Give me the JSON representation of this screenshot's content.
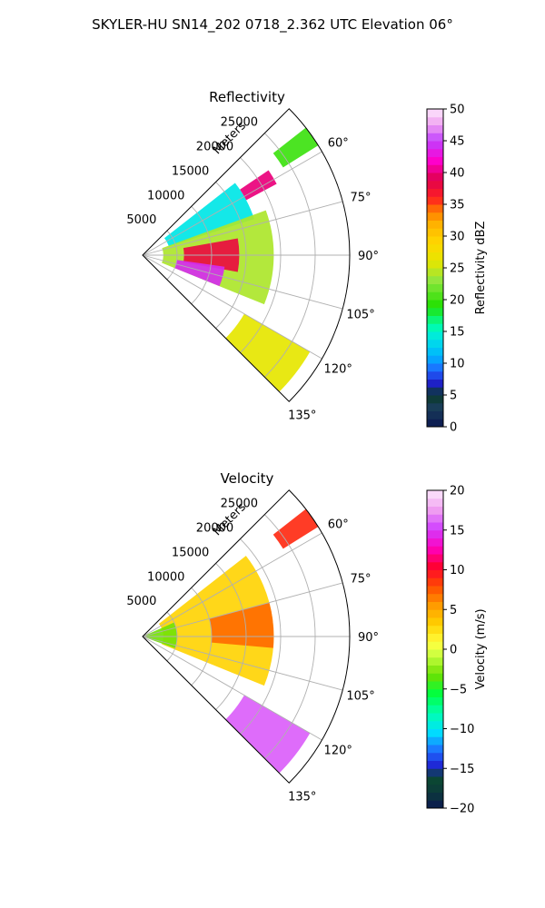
{
  "figure": {
    "title": "SKYLER-HU  SN14_202  0718_2.362 UTC Elevation 06°"
  },
  "chart_data": [
    {
      "type": "heatmap",
      "title": "Reflectivity",
      "projection": "polar sector",
      "radial_label": "Meters",
      "radial_ticks": [
        "5000",
        "10000",
        "15000",
        "20000",
        "25000"
      ],
      "radial_tick_values": [
        5000,
        10000,
        15000,
        20000,
        25000
      ],
      "rlim": [
        0,
        30000
      ],
      "angle_ticks": [
        "60°",
        "75°",
        "90°",
        "105°",
        "120°",
        "135°"
      ],
      "angle_tick_values": [
        60,
        75,
        90,
        105,
        120,
        135
      ],
      "theta_range_deg": [
        45,
        135
      ],
      "grid": true,
      "colorbar": {
        "label": "Reflectivity dBZ",
        "range": [
          0,
          50
        ],
        "ticks": [
          "0",
          "5",
          "10",
          "15",
          "20",
          "25",
          "30",
          "35",
          "40",
          "45",
          "50"
        ],
        "tick_values": [
          0,
          5,
          10,
          15,
          20,
          25,
          30,
          35,
          40,
          45,
          50
        ]
      },
      "echo_regions": [
        {
          "az_range": [
            52,
            58
          ],
          "range_m": [
            24000,
            30000
          ],
          "dbz": 20
        },
        {
          "az_range": [
            56,
            62
          ],
          "range_m": [
            17000,
            22000
          ],
          "dbz": 40
        },
        {
          "az_range": [
            52,
            72
          ],
          "range_m": [
            4000,
            17000
          ],
          "dbz": 14
        },
        {
          "az_range": [
            70,
            112
          ],
          "range_m": [
            3000,
            19000
          ],
          "dbz": 24
        },
        {
          "az_range": [
            80,
            100
          ],
          "range_m": [
            6000,
            14000
          ],
          "dbz": 38
        },
        {
          "az_range": [
            98,
            112
          ],
          "range_m": [
            5000,
            12000
          ],
          "dbz": 44
        },
        {
          "az_range": [
            120,
            136
          ],
          "range_m": [
            17000,
            28000
          ],
          "dbz": 26
        }
      ]
    },
    {
      "type": "heatmap",
      "title": "Velocity",
      "projection": "polar sector",
      "radial_label": "Meters",
      "radial_ticks": [
        "5000",
        "10000",
        "15000",
        "20000",
        "25000"
      ],
      "radial_tick_values": [
        5000,
        10000,
        15000,
        20000,
        25000
      ],
      "rlim": [
        0,
        30000
      ],
      "angle_ticks": [
        "60°",
        "75°",
        "90°",
        "105°",
        "120°",
        "135°"
      ],
      "angle_tick_values": [
        60,
        75,
        90,
        105,
        120,
        135
      ],
      "theta_range_deg": [
        45,
        135
      ],
      "grid": true,
      "colorbar": {
        "label": "Velocity (m/s)",
        "range": [
          -20,
          20
        ],
        "ticks": [
          "−20",
          "−15",
          "−10",
          "−5",
          "0",
          "5",
          "10",
          "15",
          "20"
        ],
        "tick_values": [
          -20,
          -15,
          -10,
          -5,
          0,
          5,
          10,
          15,
          20
        ]
      },
      "echo_regions": [
        {
          "az_range": [
            52,
            58
          ],
          "range_m": [
            24000,
            30000
          ],
          "velocity_ms": 9
        },
        {
          "az_range": [
            52,
            112
          ],
          "range_m": [
            3000,
            19000
          ],
          "velocity_ms": 3
        },
        {
          "az_range": [
            75,
            95
          ],
          "range_m": [
            10000,
            19000
          ],
          "velocity_ms": 7
        },
        {
          "az_range": [
            66,
            110
          ],
          "range_m": [
            0,
            5000
          ],
          "velocity_ms": -3
        },
        {
          "az_range": [
            120,
            136
          ],
          "range_m": [
            17000,
            28000
          ],
          "velocity_ms": 16
        }
      ]
    }
  ]
}
